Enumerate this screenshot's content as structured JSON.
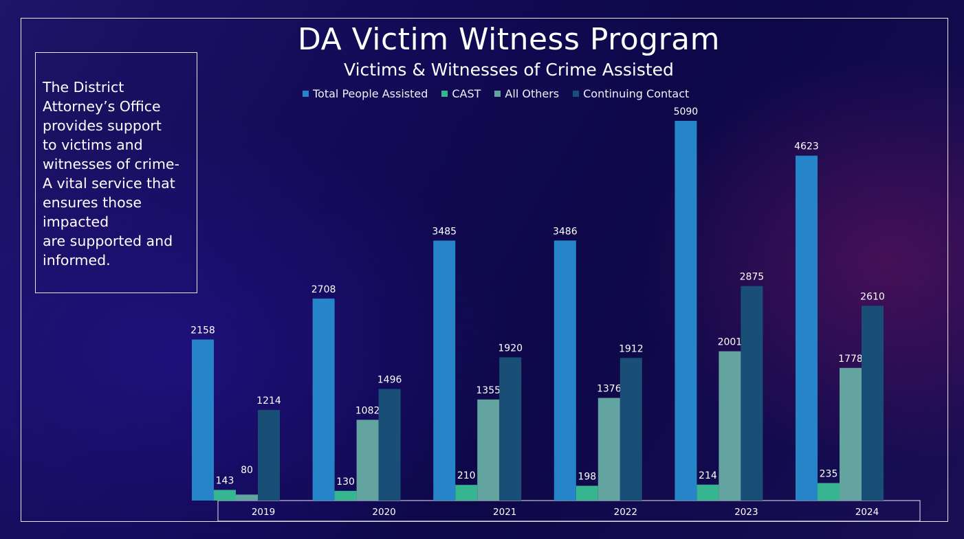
{
  "chart_data": {
    "type": "bar",
    "title": "DA Victim Witness Program",
    "subtitle": "Victims & Witnesses of Crime Assisted",
    "categories": [
      "2019",
      "2020",
      "2021",
      "2022",
      "2023",
      "2024"
    ],
    "series": [
      {
        "name": "Total People Assisted",
        "color": "#2684c8",
        "values": [
          2158,
          2708,
          3485,
          3486,
          5090,
          4623
        ]
      },
      {
        "name": "CAST",
        "color": "#36b590",
        "values": [
          143,
          130,
          210,
          198,
          214,
          235
        ]
      },
      {
        "name": "All Others",
        "color": "#63a3a0",
        "values": [
          80,
          1082,
          1355,
          1376,
          2001,
          1778
        ]
      },
      {
        "name": "Continuing Contact",
        "color": "#194f76",
        "values": [
          1214,
          1496,
          1920,
          1912,
          2875,
          2610
        ]
      }
    ],
    "ylim": [
      0,
      5090
    ],
    "grid": false,
    "legend_position": "top"
  },
  "info_text": "The District\nAttorney’s Office\nprovides support\nto victims and\nwitnesses of crime-\nA vital service that\nensures those\nimpacted\nare supported and\ninformed."
}
